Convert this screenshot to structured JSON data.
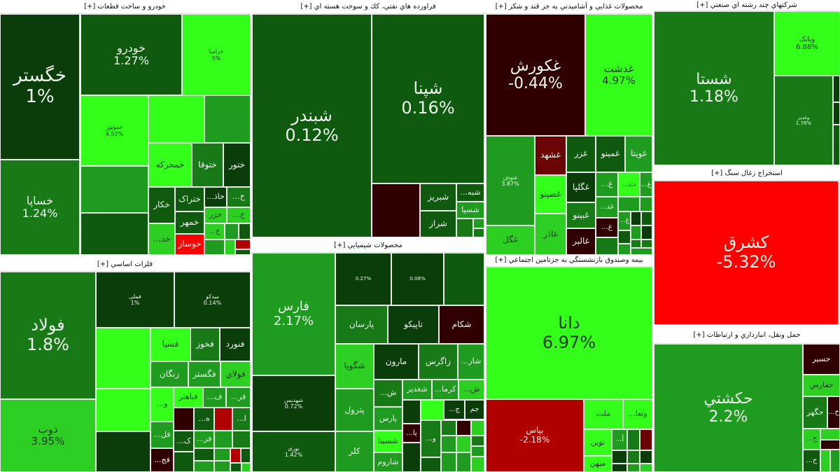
{
  "colors": {
    "darkest": "#0a3d0a",
    "dark": "#0f5a0f",
    "mid_dark": "#177a17",
    "mid": "#1f9c1f",
    "bright": "#2ccf22",
    "brightest": "#33ff1a",
    "dark_red": "#300000",
    "red": "#b00000",
    "bright_red": "#ff0000"
  },
  "sectors": {
    "auto": {
      "title": "خودرو و ساخت قطعات [+]",
      "tiles": [
        {
          "name": "خگستر",
          "change": "1%"
        },
        {
          "name": "خساپا",
          "change": "1.24%"
        },
        {
          "name": "خودرو",
          "change": "1.27%"
        },
        {
          "name": "خزامیا",
          "change": "5%"
        },
        {
          "name": "خموتور",
          "change": "4.92%"
        },
        {
          "name": "خمحرکه"
        },
        {
          "name": "ختوقا"
        },
        {
          "name": "ختور"
        },
        {
          "name": "خکار"
        },
        {
          "name": "ختراک"
        },
        {
          "name": "خمهر"
        },
        {
          "name": "خوساز"
        },
        {
          "name": "خد..."
        },
        {
          "name": "خاذ..."
        },
        {
          "name": "خ..."
        },
        {
          "name": "خزر"
        },
        {
          "name": "خ..."
        },
        {
          "name": "خ..."
        }
      ]
    },
    "oil": {
      "title": "فراورده هاي نفتي، كك و سوخت هسته اي [+]",
      "tiles": [
        {
          "name": "شبندر",
          "change": "0.12%"
        },
        {
          "name": "شپنا",
          "change": "0.16%"
        },
        {
          "name": "شبریز"
        },
        {
          "name": "شراز"
        },
        {
          "name": "شبه..."
        },
        {
          "name": "شسپا"
        }
      ]
    },
    "food": {
      "title": "محصولات غذايي و آشاميدني به جز قند و شكر [+]",
      "tiles": [
        {
          "name": "غکورش",
          "change": "-0.44%"
        },
        {
          "name": "غدشت",
          "change": "4.97%"
        },
        {
          "name": "غنوش",
          "change": "3.87%"
        },
        {
          "name": "غگل"
        },
        {
          "name": "غشهد"
        },
        {
          "name": "غصینو"
        },
        {
          "name": "غاذر"
        },
        {
          "name": "غزر"
        },
        {
          "name": "غمینو"
        },
        {
          "name": "غویتا"
        },
        {
          "name": "غگلپا"
        },
        {
          "name": "غبینو"
        },
        {
          "name": "غالبر"
        },
        {
          "name": "غ..."
        },
        {
          "name": "ت..."
        },
        {
          "name": "غ..."
        },
        {
          "name": "غد..."
        },
        {
          "name": "غ..."
        },
        {
          "name": "غ..."
        }
      ]
    },
    "multi": {
      "title": "شركتهاي چند رشته اي صنعتي [+]",
      "tiles": [
        {
          "name": "شستا",
          "change": "1.18%"
        },
        {
          "name": "وبانک",
          "change": "6.88%"
        },
        {
          "name": "وغدیر",
          "change": "1.76%"
        }
      ]
    },
    "coal": {
      "title": "استخراج زغال سنگ [+]",
      "tiles": [
        {
          "name": "کشرق",
          "change": "-5.32%"
        }
      ]
    },
    "transport": {
      "title": "حمل ونقل، انبارداري و ارتباطات [+]",
      "tiles": [
        {
          "name": "حکشتي",
          "change": "2.2%"
        },
        {
          "name": "حسیر"
        },
        {
          "name": "حفارس"
        },
        {
          "name": "حگهر"
        },
        {
          "name": "ح..."
        },
        {
          "name": "ح..."
        },
        {
          "name": "ح..."
        }
      ]
    },
    "metals": {
      "title": "فلزات اساسي [+]",
      "tiles": [
        {
          "name": "فولاد",
          "change": "1.8%"
        },
        {
          "name": "ذوب",
          "change": "3.95%"
        },
        {
          "name": "فملی",
          "change": "1%"
        },
        {
          "name": "میدکو",
          "change": "0.14%"
        },
        {
          "name": "فسیا"
        },
        {
          "name": "فخوز"
        },
        {
          "name": "فنورد"
        },
        {
          "name": "زنگان"
        },
        {
          "name": "فگستر"
        },
        {
          "name": "فولاي"
        },
        {
          "name": "و..."
        },
        {
          "name": "فباهنر"
        },
        {
          "name": "ف..."
        },
        {
          "name": "فر..."
        },
        {
          "name": "ه..."
        },
        {
          "name": "ا..."
        },
        {
          "name": "فل..."
        },
        {
          "name": "ک..."
        },
        {
          "name": "فز..."
        },
        {
          "name": "فج..."
        }
      ]
    },
    "chem": {
      "title": "محصولات شيميايي [+]",
      "tiles": [
        {
          "name": "فارس",
          "change": "2.17%"
        },
        {
          "name": "شهدیس",
          "change": "0.72%"
        },
        {
          "name": "نوری",
          "change": "1.42%"
        },
        {
          "name": "پارسان"
        },
        {
          "name": "تاپیکو"
        },
        {
          "name": "شکام"
        },
        {
          "name": "شگویا"
        },
        {
          "name": "پترول"
        },
        {
          "name": "کلر"
        },
        {
          "name": "مارون"
        },
        {
          "name": "زاگرس"
        },
        {
          "name": "شار..."
        },
        {
          "name": "ش..."
        },
        {
          "name": "شغدیر"
        },
        {
          "name": "کرما..."
        },
        {
          "name": "ش..."
        },
        {
          "name": "پارس"
        },
        {
          "name": "شسینا"
        },
        {
          "name": "شاروم"
        },
        {
          "name": "ج..."
        },
        {
          "name": "جم"
        },
        {
          "name": "پا..."
        },
        {
          "name": "و..."
        },
        {
          "name": "",
          "change": "0.27%"
        },
        {
          "name": "",
          "change": "0.08%"
        }
      ]
    },
    "insurance": {
      "title": "بيمه وصندوق بازنشستگي به جزتامين اجتماعي [+]",
      "tiles": [
        {
          "name": "دانا",
          "change": "6.97%"
        },
        {
          "name": "بپاس",
          "change": "-2.18%"
        },
        {
          "name": "ملت"
        },
        {
          "name": "وتعا..."
        },
        {
          "name": "نوین"
        },
        {
          "name": "میهن"
        },
        {
          "name": "آ..."
        }
      ]
    }
  }
}
